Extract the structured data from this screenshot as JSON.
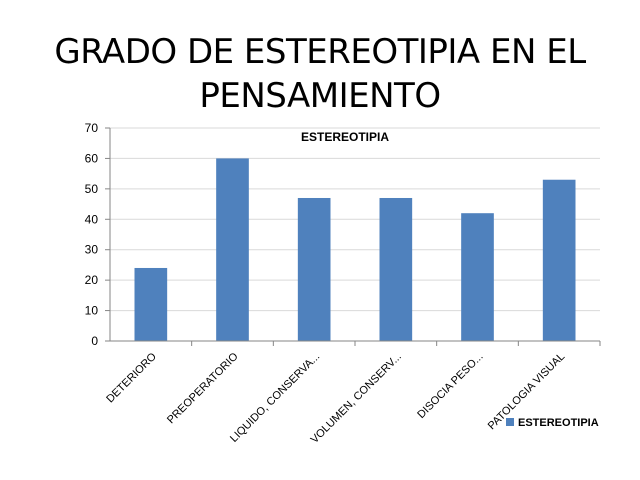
{
  "slide": {
    "title_line1": "GRADO DE ESTEREOTIPIA  EN EL",
    "title_line2": "PENSAMIENTO"
  },
  "chart_data": {
    "type": "bar",
    "title": "ESTEREOTIPIA",
    "categories": [
      "DETERIORO",
      "PREOPERATORIO",
      "LIQUIDO, CONSERVA...",
      "VOLUMEN, CONSERV...",
      "DISOCIA PESO...",
      "PATOLOGIA VISUAL"
    ],
    "series": [
      {
        "name": "ESTEREOTIPIA",
        "values": [
          24,
          60,
          47,
          47,
          42,
          53
        ]
      }
    ],
    "ylim": [
      0,
      70
    ],
    "yticks": [
      0,
      10,
      20,
      30,
      40,
      50,
      60,
      70
    ],
    "grid": true,
    "legend": "right",
    "xlabel": "",
    "ylabel": "",
    "colors": {
      "bar": "#4F81BD",
      "grid": "#D9D9D9",
      "axis": "#868686"
    }
  }
}
